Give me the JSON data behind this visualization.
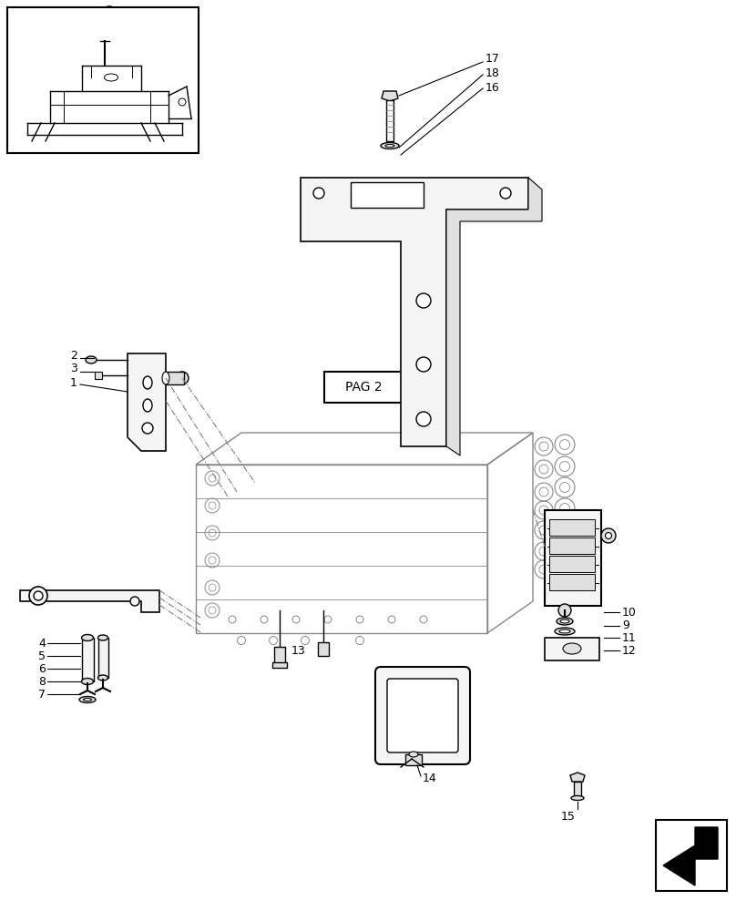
{
  "bg_color": "#ffffff",
  "line_color": "#000000",
  "sketch_color": "#888888",
  "light_fill": "#f5f5f5",
  "mid_fill": "#e0e0e0"
}
